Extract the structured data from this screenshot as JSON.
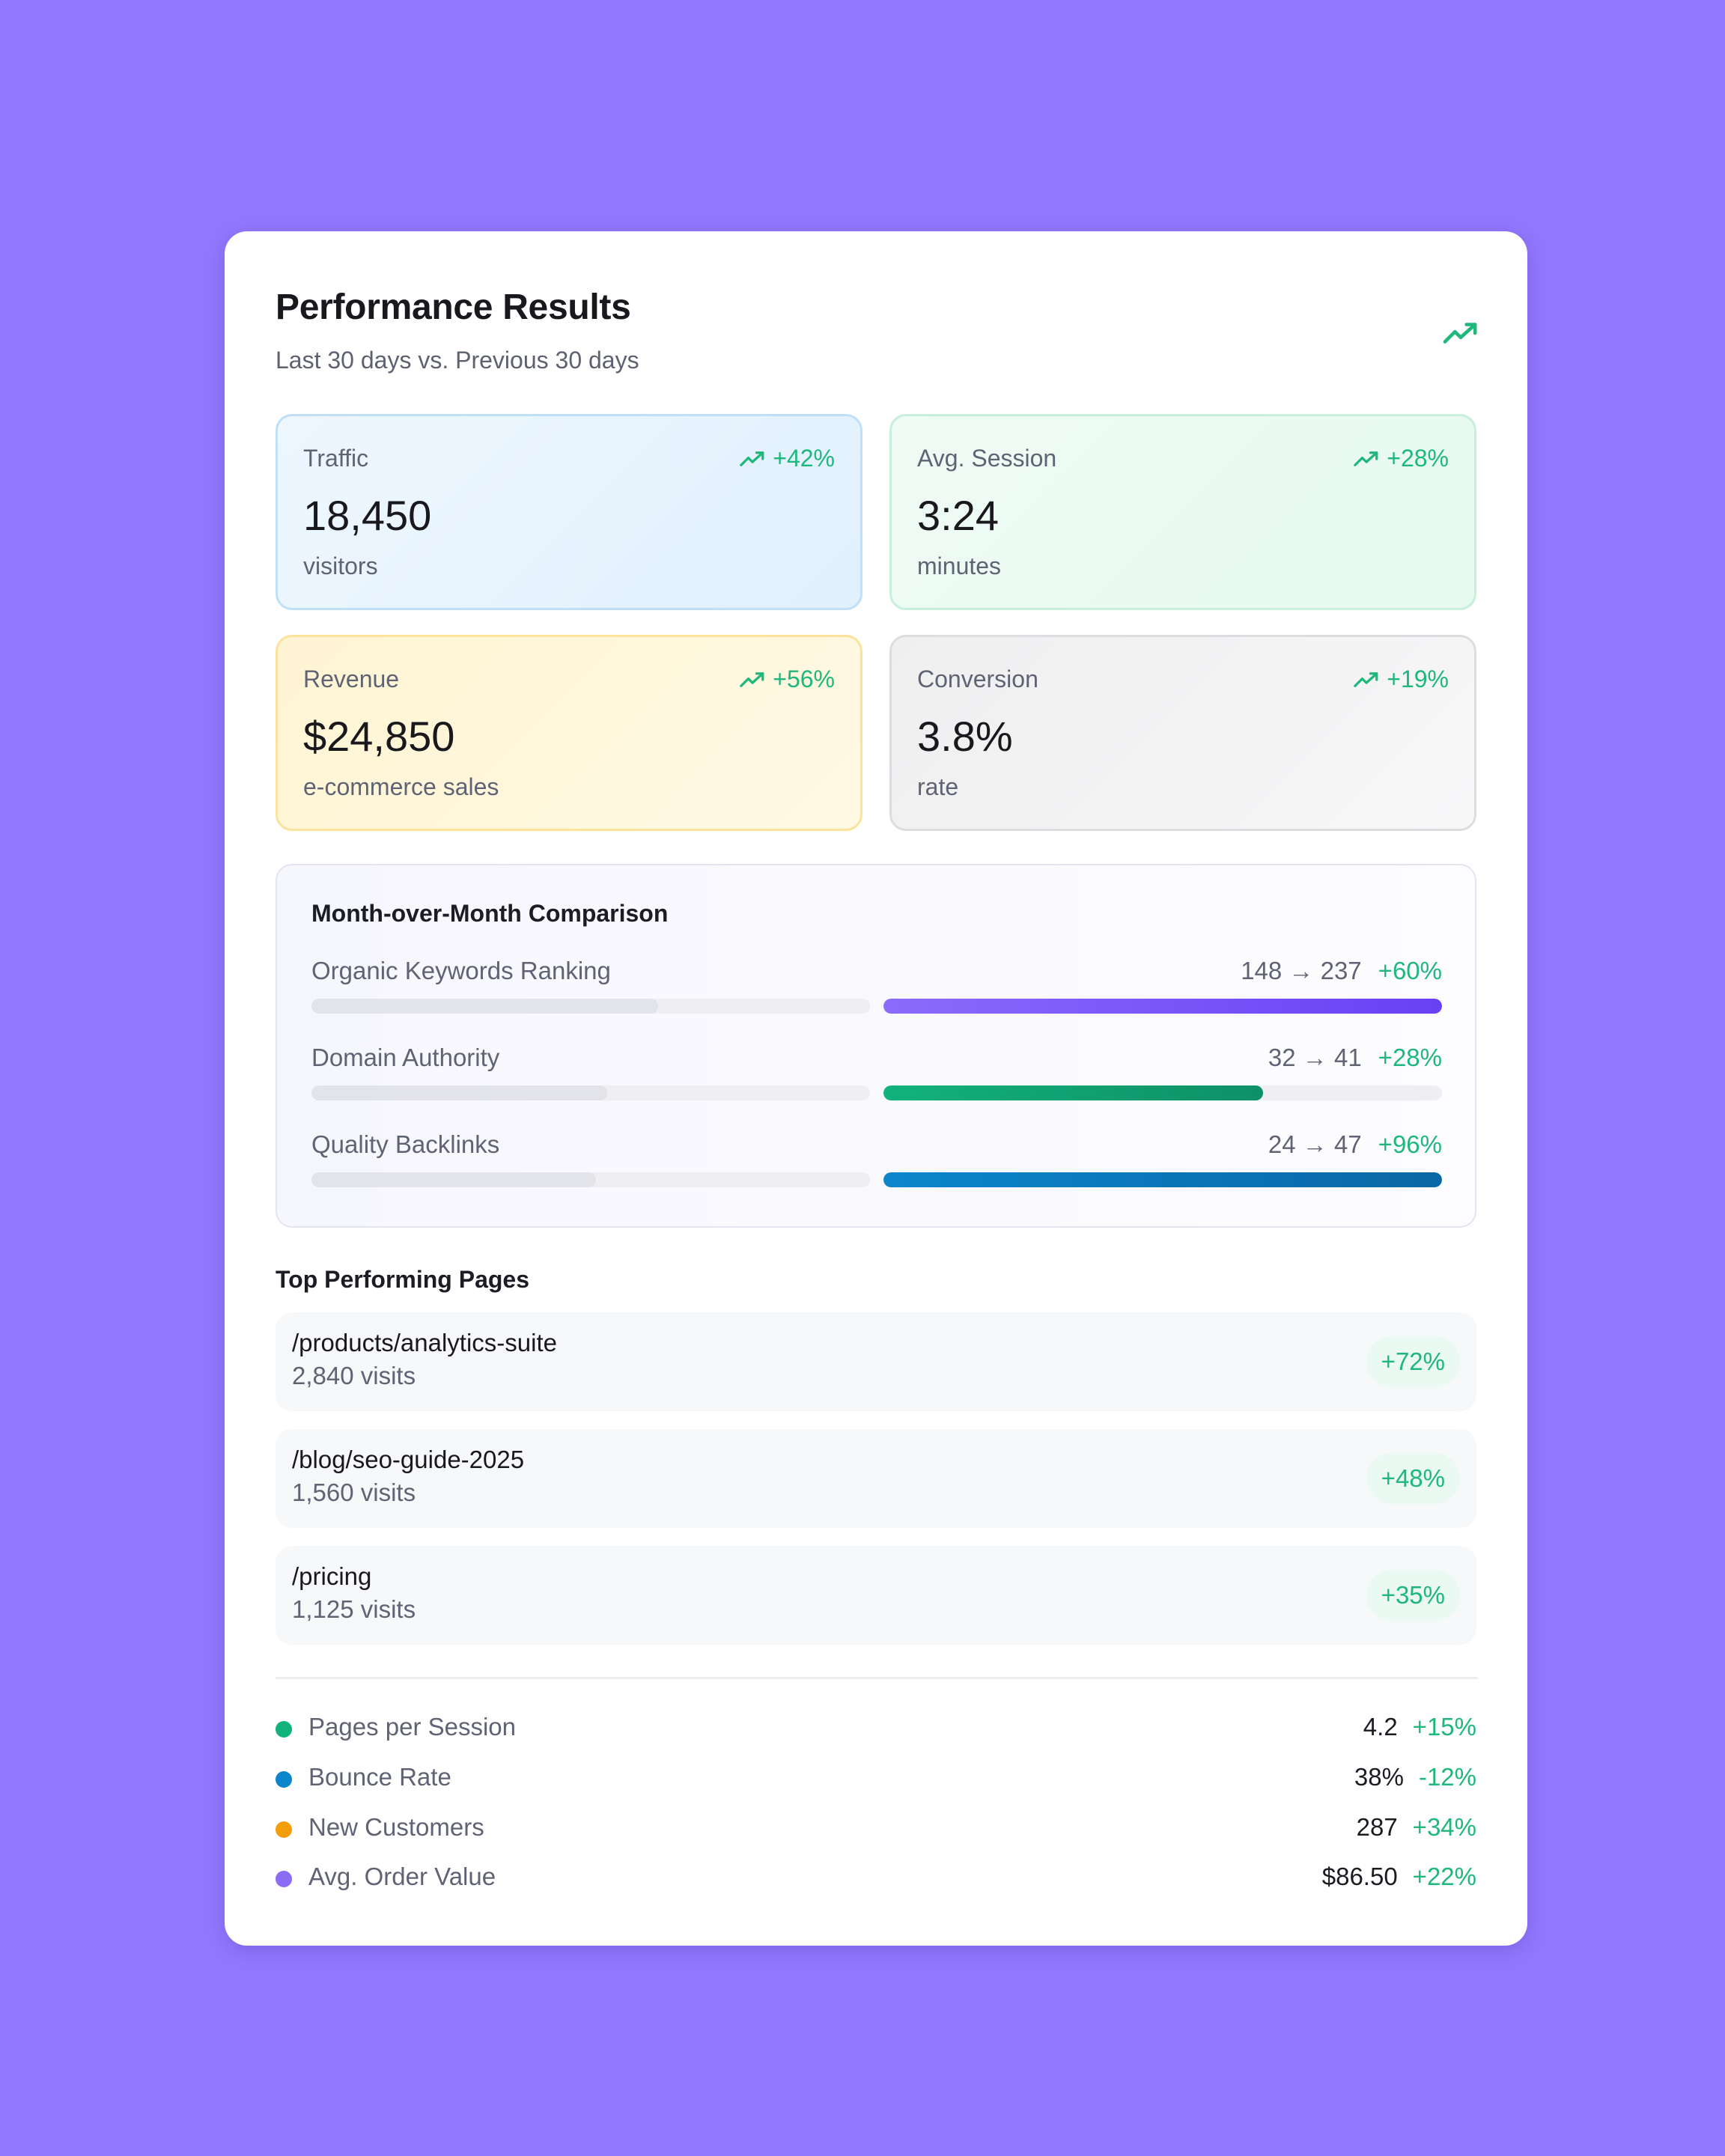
{
  "header": {
    "title": "Performance Results",
    "subtitle": "Last 30 days vs. Previous 30 days",
    "trend_icon": "trending-up-icon"
  },
  "metrics": [
    {
      "label": "Traffic",
      "change": "+42%",
      "value": "18,450",
      "unit": "visitors"
    },
    {
      "label": "Avg. Session",
      "change": "+28%",
      "value": "3:24",
      "unit": "minutes"
    },
    {
      "label": "Revenue",
      "change": "+56%",
      "value": "$24,850",
      "unit": "e-commerce sales"
    },
    {
      "label": "Conversion",
      "change": "+19%",
      "value": "3.8%",
      "unit": "rate"
    }
  ],
  "comparison": {
    "title": "Month-over-Month Comparison",
    "rows": [
      {
        "name": "Organic Keywords Ranking",
        "nums": "148 → 237",
        "pct": "+60%",
        "prev_fill": 0.62,
        "cur_fill": 1.0,
        "color_from": "#8a6cfb",
        "color_to": "#6a40f5"
      },
      {
        "name": "Domain Authority",
        "nums": "32 → 41",
        "pct": "+28%",
        "prev_fill": 0.53,
        "cur_fill": 0.68,
        "color_from": "#12b27c",
        "color_to": "#0e9066"
      },
      {
        "name": "Quality Backlinks",
        "nums": "24 → 47",
        "pct": "+96%",
        "prev_fill": 0.51,
        "cur_fill": 1.0,
        "color_from": "#0b86cc",
        "color_to": "#0a67a6"
      }
    ]
  },
  "top_pages": {
    "title": "Top Performing Pages",
    "items": [
      {
        "path": "/products/analytics-suite",
        "visits": "2,840 visits",
        "change": "+72%"
      },
      {
        "path": "/blog/seo-guide-2025",
        "visits": "1,560 visits",
        "change": "+48%"
      },
      {
        "path": "/pricing",
        "visits": "1,125 visits",
        "change": "+35%"
      }
    ]
  },
  "stats": [
    {
      "name": "Pages per Session",
      "value": "4.2",
      "change": "+15%",
      "color": "#12b27c"
    },
    {
      "name": "Bounce Rate",
      "value": "38%",
      "change": "-12%",
      "color": "#0b86cc"
    },
    {
      "name": "New Customers",
      "value": "287",
      "change": "+34%",
      "color": "#f59e0b"
    },
    {
      "name": "Avg. Order Value",
      "value": "$86.50",
      "change": "+22%",
      "color": "#8b6cf5"
    }
  ]
}
